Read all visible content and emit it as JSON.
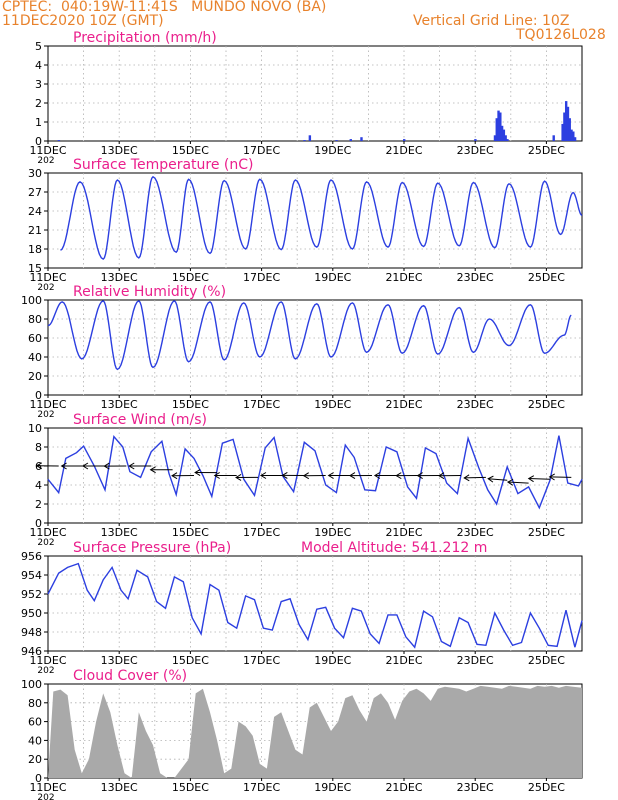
{
  "header": {
    "line1_left": "CPTEC:  040:19W-11:41S   MUNDO NOVO (BA)",
    "line2_left": "11DEC2020 10Z (GMT)",
    "line2_right": "Vertical Grid Line: 10Z",
    "line3_right": "TQ0126L028",
    "model_altitude": "Model Altitude: 541.212 m"
  },
  "colors": {
    "header": "#e8822c",
    "title": "#ea1f8c",
    "series": "#2c3fe0",
    "wind_arrow": "#000000",
    "cloud_fill": "#a9a9a9",
    "grid": "#b0b0b0"
  },
  "x_axis": {
    "tick_labels": [
      "11DEC",
      "13DEC",
      "15DEC",
      "17DEC",
      "19DEC",
      "21DEC",
      "23DEC",
      "25DEC"
    ],
    "tick_days": [
      0,
      2,
      4,
      6,
      8,
      10,
      12,
      14
    ],
    "range_days": [
      0,
      15
    ],
    "clipped_year_label": "202"
  },
  "chart_data": [
    {
      "type": "bar",
      "title": "Precipitation (mm/h)",
      "ylim": [
        0,
        5
      ],
      "yticks": [
        "0",
        "1",
        "2",
        "3",
        "4",
        "5"
      ],
      "series": [
        {
          "values_note_days": [],
          "x": [
            0.3,
            7.2,
            7.35,
            8.1,
            8.5,
            8.8,
            10.0,
            12.0,
            12.55,
            12.6,
            12.65,
            12.7,
            12.75,
            12.8,
            12.85,
            12.9,
            14.2,
            14.45,
            14.5,
            14.55,
            14.6,
            14.65,
            14.7,
            14.75,
            14.8
          ],
          "values": [
            0.05,
            0.05,
            0.3,
            0.05,
            0.1,
            0.2,
            0.1,
            0.1,
            0.3,
            1.2,
            1.6,
            1.5,
            0.8,
            0.6,
            0.3,
            0.1,
            0.3,
            0.9,
            1.5,
            2.1,
            1.8,
            1.2,
            0.6,
            0.5,
            0.2
          ]
        }
      ]
    },
    {
      "type": "line",
      "title": "Surface Temperature (nC)",
      "ylim": [
        15,
        30
      ],
      "yticks": [
        "15",
        "18",
        "21",
        "24",
        "27",
        "30"
      ],
      "series": [
        {
          "max_times": [
            0.9,
            1.95,
            2.95,
            3.95,
            4.95,
            5.95,
            6.95,
            7.95,
            8.95,
            9.95,
            10.95,
            11.95,
            12.95,
            13.95,
            14.75
          ],
          "max_values": [
            28.6,
            28.9,
            29.4,
            29.0,
            28.8,
            29.0,
            28.9,
            28.9,
            28.6,
            28.5,
            28.4,
            28.5,
            28.3,
            28.7,
            26.9
          ],
          "min_times": [
            0.35,
            1.55,
            2.55,
            3.6,
            4.55,
            5.55,
            6.55,
            7.55,
            8.55,
            9.55,
            10.55,
            11.55,
            12.55,
            13.55,
            14.4,
            15.0
          ],
          "min_values": [
            17.8,
            16.4,
            16.6,
            17.5,
            17.3,
            18.0,
            17.9,
            18.3,
            18.0,
            18.3,
            18.4,
            18.5,
            18.2,
            18.3,
            20.3,
            23.3
          ]
        }
      ]
    },
    {
      "type": "line",
      "title": "Relative Humidity (%)",
      "ylim": [
        0,
        100
      ],
      "yticks": [
        "0",
        "20",
        "40",
        "60",
        "80",
        "100"
      ],
      "series": [
        {
          "max_times": [
            0.4,
            1.55,
            2.55,
            3.55,
            4.55,
            5.5,
            6.55,
            7.55,
            8.55,
            9.55,
            10.55,
            11.55,
            12.4,
            13.55,
            14.7
          ],
          "max_values": [
            98,
            99,
            99,
            99,
            98,
            97,
            98,
            96,
            97,
            95,
            94,
            92,
            80,
            95,
            84
          ],
          "min_times": [
            0.0,
            0.95,
            1.95,
            2.95,
            3.95,
            4.95,
            5.95,
            6.95,
            7.95,
            8.95,
            9.95,
            10.95,
            11.95,
            12.95,
            13.95,
            14.5
          ],
          "min_values": [
            73,
            38,
            27,
            29,
            35,
            37,
            40,
            38,
            40,
            45,
            44,
            43,
            45,
            52,
            44,
            63
          ]
        }
      ]
    },
    {
      "type": "line",
      "title": "Surface Wind (m/s)",
      "ylim": [
        0,
        10
      ],
      "yticks": [
        "0",
        "2",
        "4",
        "6",
        "8",
        "10"
      ],
      "series": [
        {
          "x": [
            0.0,
            0.3,
            0.5,
            0.8,
            1.0,
            1.3,
            1.6,
            1.85,
            2.1,
            2.3,
            2.6,
            2.9,
            3.2,
            3.4,
            3.6,
            3.85,
            4.1,
            4.35,
            4.6,
            4.9,
            5.2,
            5.5,
            5.8,
            6.1,
            6.35,
            6.6,
            6.9,
            7.2,
            7.5,
            7.8,
            8.1,
            8.35,
            8.6,
            8.9,
            9.2,
            9.5,
            9.8,
            10.1,
            10.35,
            10.6,
            10.9,
            11.2,
            11.5,
            11.8,
            12.1,
            12.35,
            12.6,
            12.9,
            13.2,
            13.5,
            13.8,
            14.1,
            14.35,
            14.6,
            14.9,
            15.0
          ],
          "values": [
            4.6,
            3.2,
            6.8,
            7.4,
            8.1,
            6.0,
            3.5,
            9.1,
            8.0,
            5.4,
            4.8,
            7.5,
            8.6,
            5.2,
            3.0,
            7.8,
            6.8,
            5.0,
            2.8,
            8.4,
            8.8,
            4.6,
            2.9,
            7.9,
            9.0,
            4.9,
            3.3,
            8.5,
            7.6,
            4.0,
            3.2,
            8.2,
            6.9,
            3.5,
            3.4,
            8.0,
            7.5,
            3.8,
            2.6,
            7.9,
            7.3,
            4.2,
            3.1,
            8.9,
            5.8,
            3.5,
            2.0,
            5.9,
            3.1,
            3.8,
            1.6,
            4.5,
            9.2,
            4.2,
            3.9,
            4.6
          ]
        }
      ],
      "arrows": {
        "x": [
          0.3,
          1.0,
          1.6,
          2.2,
          2.9,
          3.5,
          4.1,
          4.75,
          5.3,
          5.9,
          6.6,
          7.2,
          7.8,
          8.5,
          9.1,
          9.8,
          10.4,
          11.0,
          11.6,
          12.3,
          12.9,
          13.5,
          14.1,
          14.7
        ],
        "direction_deg": [
          85,
          90,
          90,
          88,
          90,
          92,
          95,
          92,
          90,
          88,
          90,
          92,
          95,
          90,
          92,
          90,
          93,
          88,
          95,
          80,
          60,
          110,
          75,
          100
        ],
        "speed": [
          6,
          6,
          6,
          6,
          6,
          5.6,
          5,
          5.3,
          5,
          4.8,
          5,
          5,
          5,
          5,
          5,
          5,
          5,
          5,
          5,
          4.8,
          4.5,
          4.2,
          4.6,
          4.8
        ]
      }
    },
    {
      "type": "line",
      "title": "Surface Pressure (hPa)",
      "ylim": [
        946,
        956
      ],
      "yticks": [
        "946",
        "948",
        "950",
        "952",
        "954",
        "956"
      ],
      "series": [
        {
          "x": [
            0.0,
            0.3,
            0.55,
            0.85,
            1.1,
            1.3,
            1.55,
            1.8,
            2.05,
            2.25,
            2.5,
            2.8,
            3.05,
            3.3,
            3.55,
            3.8,
            4.05,
            4.3,
            4.55,
            4.8,
            5.05,
            5.3,
            5.55,
            5.8,
            6.05,
            6.3,
            6.55,
            6.8,
            7.05,
            7.3,
            7.55,
            7.8,
            8.05,
            8.3,
            8.55,
            8.8,
            9.05,
            9.3,
            9.55,
            9.8,
            10.05,
            10.3,
            10.55,
            10.8,
            11.05,
            11.3,
            11.55,
            11.8,
            12.05,
            12.3,
            12.55,
            12.8,
            13.05,
            13.3,
            13.55,
            13.8,
            14.05,
            14.3,
            14.55,
            14.8,
            15.0
          ],
          "values": [
            952.0,
            954.2,
            954.8,
            955.2,
            952.4,
            951.3,
            953.5,
            954.8,
            952.4,
            951.5,
            954.5,
            953.8,
            951.2,
            950.5,
            953.8,
            953.3,
            949.5,
            947.8,
            953.0,
            952.4,
            949.0,
            948.4,
            951.8,
            951.4,
            948.4,
            948.2,
            951.2,
            951.5,
            948.8,
            947.2,
            950.4,
            950.6,
            948.4,
            947.4,
            950.5,
            950.2,
            947.8,
            946.8,
            949.8,
            949.8,
            947.5,
            946.4,
            950.2,
            949.6,
            947.0,
            946.5,
            949.5,
            949.0,
            946.7,
            946.6,
            950.0,
            948.2,
            946.6,
            946.9,
            950.0,
            948.4,
            946.6,
            946.5,
            950.3,
            946.4,
            949.2
          ]
        }
      ]
    },
    {
      "type": "area",
      "title": "Cloud Cover (%)",
      "ylim": [
        0,
        100
      ],
      "yticks": [
        "0",
        "20",
        "40",
        "60",
        "80",
        "100"
      ],
      "series": [
        {
          "x": [
            0.0,
            0.15,
            0.35,
            0.55,
            0.75,
            0.95,
            1.15,
            1.35,
            1.55,
            1.75,
            1.95,
            2.15,
            2.35,
            2.55,
            2.75,
            2.95,
            3.15,
            3.35,
            3.55,
            3.75,
            3.95,
            4.15,
            4.35,
            4.55,
            4.75,
            4.95,
            5.15,
            5.35,
            5.55,
            5.75,
            5.95,
            6.15,
            6.35,
            6.55,
            6.75,
            6.95,
            7.15,
            7.35,
            7.55,
            7.75,
            7.95,
            8.15,
            8.35,
            8.55,
            8.75,
            8.95,
            9.15,
            9.35,
            9.55,
            9.75,
            9.95,
            10.15,
            10.35,
            10.55,
            10.75,
            10.95,
            11.15,
            11.35,
            11.55,
            11.75,
            11.95,
            12.15,
            12.35,
            12.55,
            12.75,
            12.95,
            13.15,
            13.35,
            13.55,
            13.75,
            13.95,
            14.15,
            14.35,
            14.55,
            14.75,
            15.0
          ],
          "values": [
            0,
            92,
            94,
            88,
            30,
            5,
            20,
            60,
            90,
            70,
            35,
            5,
            0,
            70,
            50,
            35,
            5,
            0,
            0,
            10,
            20,
            90,
            95,
            70,
            40,
            5,
            10,
            60,
            55,
            45,
            15,
            10,
            65,
            70,
            50,
            30,
            25,
            75,
            80,
            65,
            50,
            60,
            85,
            88,
            72,
            60,
            85,
            90,
            80,
            62,
            82,
            92,
            95,
            90,
            82,
            95,
            97,
            96,
            95,
            92,
            95,
            98,
            97,
            96,
            95,
            98,
            97,
            96,
            95,
            98,
            97,
            98,
            96,
            98,
            97,
            96
          ]
        }
      ]
    }
  ]
}
